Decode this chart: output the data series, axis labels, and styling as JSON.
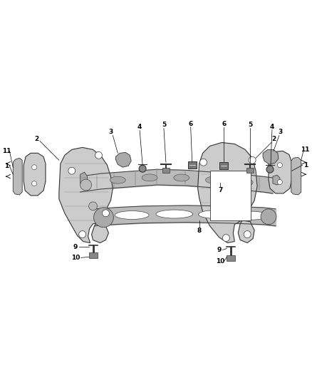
{
  "background_color": "#ffffff",
  "fig_width": 4.38,
  "fig_height": 5.33,
  "dpi": 100,
  "label_fontsize": 6.5
}
